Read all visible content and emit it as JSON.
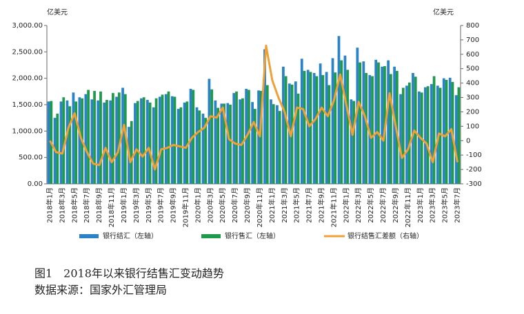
{
  "chart_data": {
    "type": "bar",
    "y_unit": "亿美元",
    "y2_unit": "亿美元",
    "caption": "图1　2018年以来银行结售汇变动趋势",
    "source": "数据来源：国家外汇管理局",
    "categories": [
      "2018年1月",
      null,
      "2018年3月",
      null,
      "2018年5月",
      null,
      "2018年7月",
      null,
      "2018年9月",
      null,
      "2018年11月",
      null,
      "2019年1月",
      null,
      "2019年3月",
      null,
      "2019年5月",
      null,
      "2019年7月",
      null,
      "2019年9月",
      null,
      "2019年11月",
      null,
      "2020年1月",
      null,
      "2020年3月",
      null,
      "2020年5月",
      null,
      "2020年7月",
      null,
      "2020年9月",
      null,
      "2020年11月",
      null,
      "2021年1月",
      null,
      "2021年3月",
      null,
      "2021年5月",
      null,
      "2021年7月",
      null,
      "2021年9月",
      null,
      "2021年11月",
      null,
      "2022年1月",
      null,
      "2022年3月",
      null,
      "2022年5月",
      null,
      "2022年7月",
      null,
      "2022年9月",
      null,
      "2022年11月",
      null,
      "2023年1月",
      null,
      "2023年3月",
      null,
      "2023年5月",
      null,
      "2023年7月"
    ],
    "series": [
      {
        "name": "银行结汇（左轴）",
        "color": "#2a82c8",
        "values": [
          1560,
          1250,
          1560,
          1580,
          1730,
          1640,
          1700,
          1600,
          1580,
          1540,
          1580,
          1650,
          1820,
          1080,
          1530,
          1620,
          1590,
          1450,
          1650,
          1700,
          1660,
          1420,
          1540,
          1800,
          1450,
          1330,
          1990,
          1580,
          1520,
          1530,
          1720,
          1600,
          1800,
          1550,
          1770,
          2550,
          1600,
          1490,
          2220,
          1900,
          1940,
          2370,
          2160,
          2100,
          2280,
          2120,
          2380,
          2800,
          2430,
          1600,
          2580,
          2320,
          2060,
          2350,
          2220,
          2340,
          2220,
          1700,
          1860,
          2100,
          1750,
          1830,
          1890,
          1860,
          2000,
          2010,
          1680
        ]
      },
      {
        "name": "银行售汇（左轴）",
        "color": "#1e9a4c",
        "values": [
          1570,
          1330,
          1640,
          1470,
          1560,
          1620,
          1780,
          1760,
          1750,
          1590,
          1720,
          1730,
          1700,
          1190,
          1570,
          1640,
          1540,
          1620,
          1690,
          1750,
          1650,
          1450,
          1560,
          1780,
          1390,
          1250,
          1790,
          1440,
          1520,
          1500,
          1750,
          1620,
          1780,
          1420,
          1760,
          1870,
          1510,
          1380,
          2040,
          1880,
          1710,
          2140,
          2120,
          2040,
          2060,
          1870,
          2110,
          2340,
          2160,
          1570,
          2300,
          2100,
          2040,
          2300,
          2230,
          2080,
          2140,
          1820,
          1920,
          2030,
          1730,
          1850,
          2040,
          1820,
          1970,
          1930,
          1830
        ]
      },
      {
        "name": "银行结售汇差额（右轴）",
        "color": "#f0a035",
        "axis": "y2",
        "values": [
          0,
          -80,
          -90,
          90,
          190,
          20,
          -80,
          -160,
          -170,
          -50,
          -150,
          -80,
          110,
          -150,
          -60,
          -110,
          -50,
          -200,
          -60,
          -50,
          -30,
          -40,
          -50,
          20,
          60,
          90,
          170,
          160,
          230,
          10,
          -20,
          -30,
          40,
          130,
          30,
          660,
          420,
          300,
          200,
          30,
          230,
          220,
          100,
          150,
          230,
          170,
          280,
          460,
          250,
          40,
          270,
          170,
          20,
          60,
          0,
          330,
          100,
          -120,
          -60,
          70,
          20,
          -20,
          -150,
          50,
          30,
          80,
          -150
        ]
      }
    ],
    "ylim": [
      0,
      3000
    ],
    "yticks": [
      {
        "value": 0,
        "label": "0.00"
      },
      {
        "value": 500,
        "label": "500.00"
      },
      {
        "value": 1000,
        "label": "1,000.00"
      },
      {
        "value": 1500,
        "label": "1,500.00"
      },
      {
        "value": 2000,
        "label": "2,000.00"
      },
      {
        "value": 2500,
        "label": "2,500.00"
      },
      {
        "value": 3000,
        "label": "3,000.00"
      }
    ],
    "y2lim": [
      -300,
      800
    ],
    "y2ticks": [
      -300,
      -200,
      -100,
      0,
      100,
      200,
      300,
      400,
      500,
      600,
      700,
      800
    ]
  }
}
